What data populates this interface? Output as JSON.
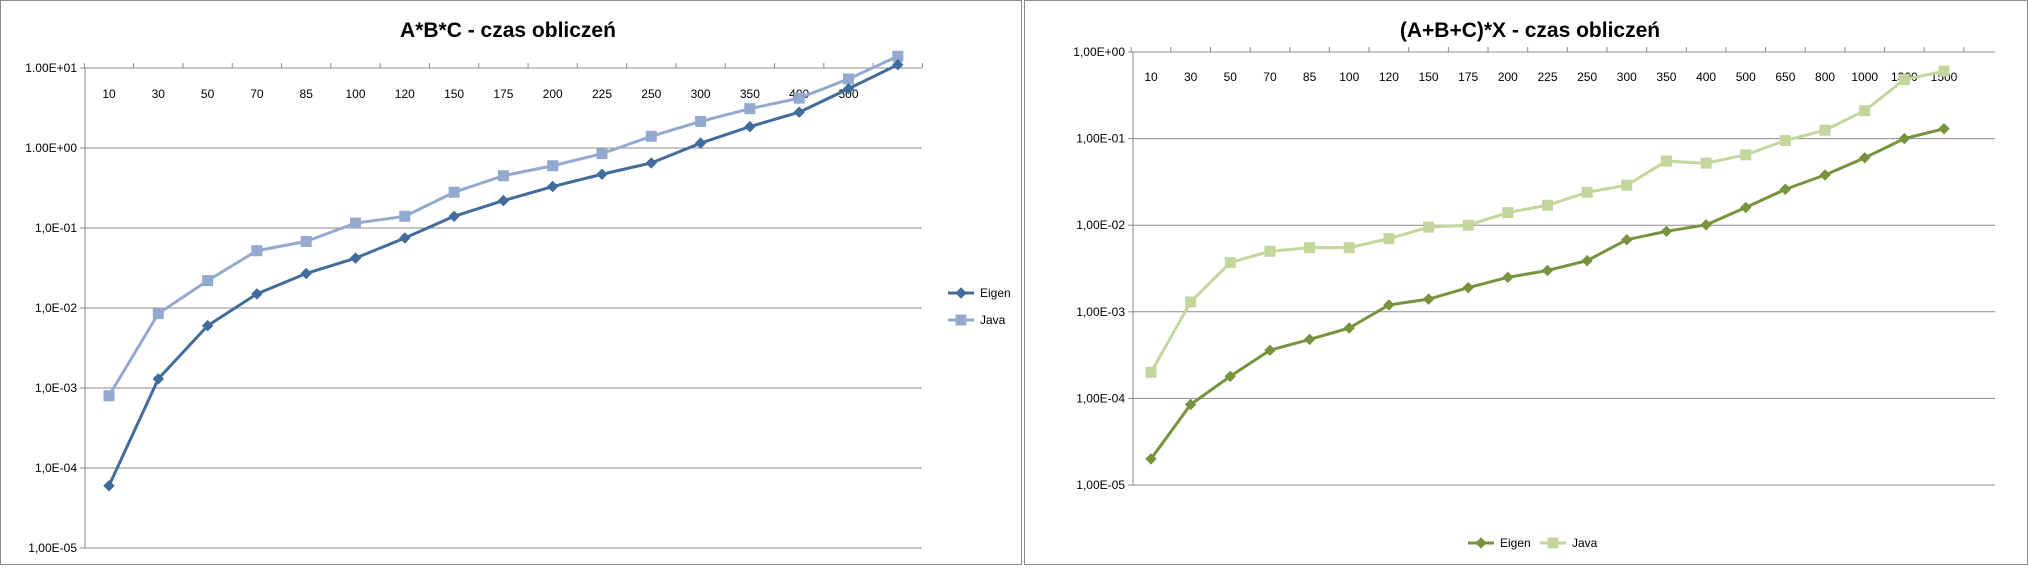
{
  "chart_data": [
    {
      "type": "line",
      "title": "A*B*C - czas obliczeń",
      "x_scale": "category",
      "y_scale": "log",
      "ylim": [
        1e-05,
        10
      ],
      "y_tick_labels": [
        "1,00E-05",
        "1,0E-04",
        "1,0E-03",
        "1,0E-02",
        "1,0E-01",
        "1.00E+00",
        "1.00E+01"
      ],
      "categories": [
        "10",
        "30",
        "50",
        "70",
        "85",
        "100",
        "120",
        "150",
        "175",
        "200",
        "225",
        "250",
        "300",
        "350",
        "400",
        "500",
        ""
      ],
      "grid": "horizontal",
      "legend": "right",
      "series": [
        {
          "name": "Eigen",
          "color": "#416c9b",
          "marker": "diamond",
          "values": [
            6e-05,
            0.0013,
            0.006,
            0.015,
            0.027,
            0.042,
            0.075,
            0.14,
            0.22,
            0.33,
            0.47,
            0.65,
            1.15,
            1.85,
            2.8,
            5.5,
            11
          ]
        },
        {
          "name": "Java",
          "color": "#93a9cf",
          "marker": "square",
          "values": [
            0.0008,
            0.0085,
            0.022,
            0.052,
            0.068,
            0.115,
            0.14,
            0.28,
            0.45,
            0.6,
            0.85,
            1.4,
            2.15,
            3.1,
            4.2,
            7.3,
            14
          ]
        }
      ]
    },
    {
      "type": "line",
      "title": "(A+B+C)*X - czas obliczeń",
      "x_scale": "category",
      "y_scale": "log",
      "ylim": [
        1e-05,
        1
      ],
      "y_tick_labels": [
        "1,00E-05",
        "1,00E-04",
        "1,00E-03",
        "1,00E-02",
        "1,00E-01",
        "1,00E+00"
      ],
      "categories": [
        "10",
        "30",
        "50",
        "70",
        "85",
        "100",
        "120",
        "150",
        "175",
        "200",
        "225",
        "250",
        "300",
        "350",
        "400",
        "500",
        "650",
        "800",
        "1000",
        "1300",
        "1500"
      ],
      "grid": "horizontal",
      "legend": "bottom",
      "series": [
        {
          "name": "Eigen",
          "color": "#77933c",
          "marker": "diamond",
          "values": [
            2e-05,
            8.5e-05,
            0.00018,
            0.00036,
            0.00048,
            0.00065,
            0.0012,
            0.0014,
            0.0019,
            0.0025,
            0.003,
            0.0039,
            0.0068,
            0.0085,
            0.0101,
            0.016,
            0.026,
            0.038,
            0.06,
            0.1,
            0.13
          ]
        },
        {
          "name": "Java",
          "color": "#c3d69b",
          "marker": "square",
          "values": [
            0.0002,
            0.0013,
            0.0037,
            0.005,
            0.0055,
            0.0055,
            0.007,
            0.0095,
            0.01,
            0.014,
            0.017,
            0.024,
            0.029,
            0.055,
            0.052,
            0.065,
            0.095,
            0.125,
            0.21,
            0.48,
            0.6
          ]
        }
      ]
    }
  ]
}
